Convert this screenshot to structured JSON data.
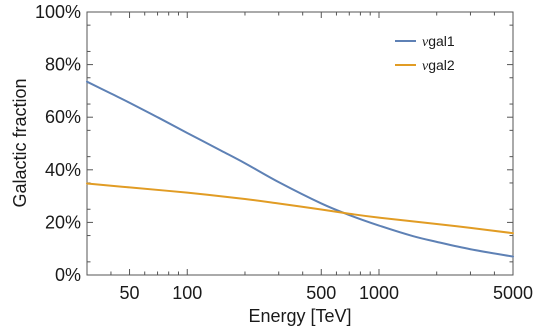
{
  "chart_data": {
    "type": "line",
    "xlabel": "Energy [TeV]",
    "ylabel": "Galactic fraction",
    "xscale": "log",
    "xlim": [
      30,
      5000
    ],
    "ylim": [
      0,
      100
    ],
    "x_ticks": [
      {
        "value": 50,
        "label": "50"
      },
      {
        "value": 100,
        "label": "100"
      },
      {
        "value": 500,
        "label": "500"
      },
      {
        "value": 1000,
        "label": "1000"
      },
      {
        "value": 5000,
        "label": "5000"
      }
    ],
    "x_minor_ticks": [
      30,
      40,
      60,
      70,
      80,
      90,
      200,
      300,
      400,
      600,
      700,
      800,
      900,
      2000,
      3000,
      4000
    ],
    "y_ticks": [
      {
        "value": 0,
        "label": "0%"
      },
      {
        "value": 20,
        "label": "20%"
      },
      {
        "value": 40,
        "label": "40%"
      },
      {
        "value": 60,
        "label": "60%"
      },
      {
        "value": 80,
        "label": "80%"
      },
      {
        "value": 100,
        "label": "100%"
      }
    ],
    "grid": false,
    "legend_position": "top-right",
    "series": [
      {
        "name": "νgal1",
        "name_prefix": "ν",
        "name_suffix": "gal1",
        "color": "#5e81b5",
        "x": [
          30,
          40,
          50,
          70,
          100,
          150,
          200,
          300,
          500,
          700,
          1000,
          1500,
          2000,
          3000,
          5000
        ],
        "y": [
          73.5,
          69,
          65.5,
          60,
          54,
          47.3,
          42.5,
          35.3,
          27.2,
          22.8,
          18.8,
          14.8,
          12.6,
          9.8,
          7.0
        ]
      },
      {
        "name": "νgal2",
        "name_prefix": "ν",
        "name_suffix": "gal2",
        "color": "#e19c24",
        "x": [
          30,
          50,
          100,
          200,
          300,
          500,
          700,
          1000,
          2000,
          3000,
          5000
        ],
        "y": [
          34.8,
          33.3,
          31.3,
          28.9,
          27.2,
          24.9,
          23.3,
          21.8,
          19.4,
          17.9,
          15.9
        ]
      }
    ]
  }
}
